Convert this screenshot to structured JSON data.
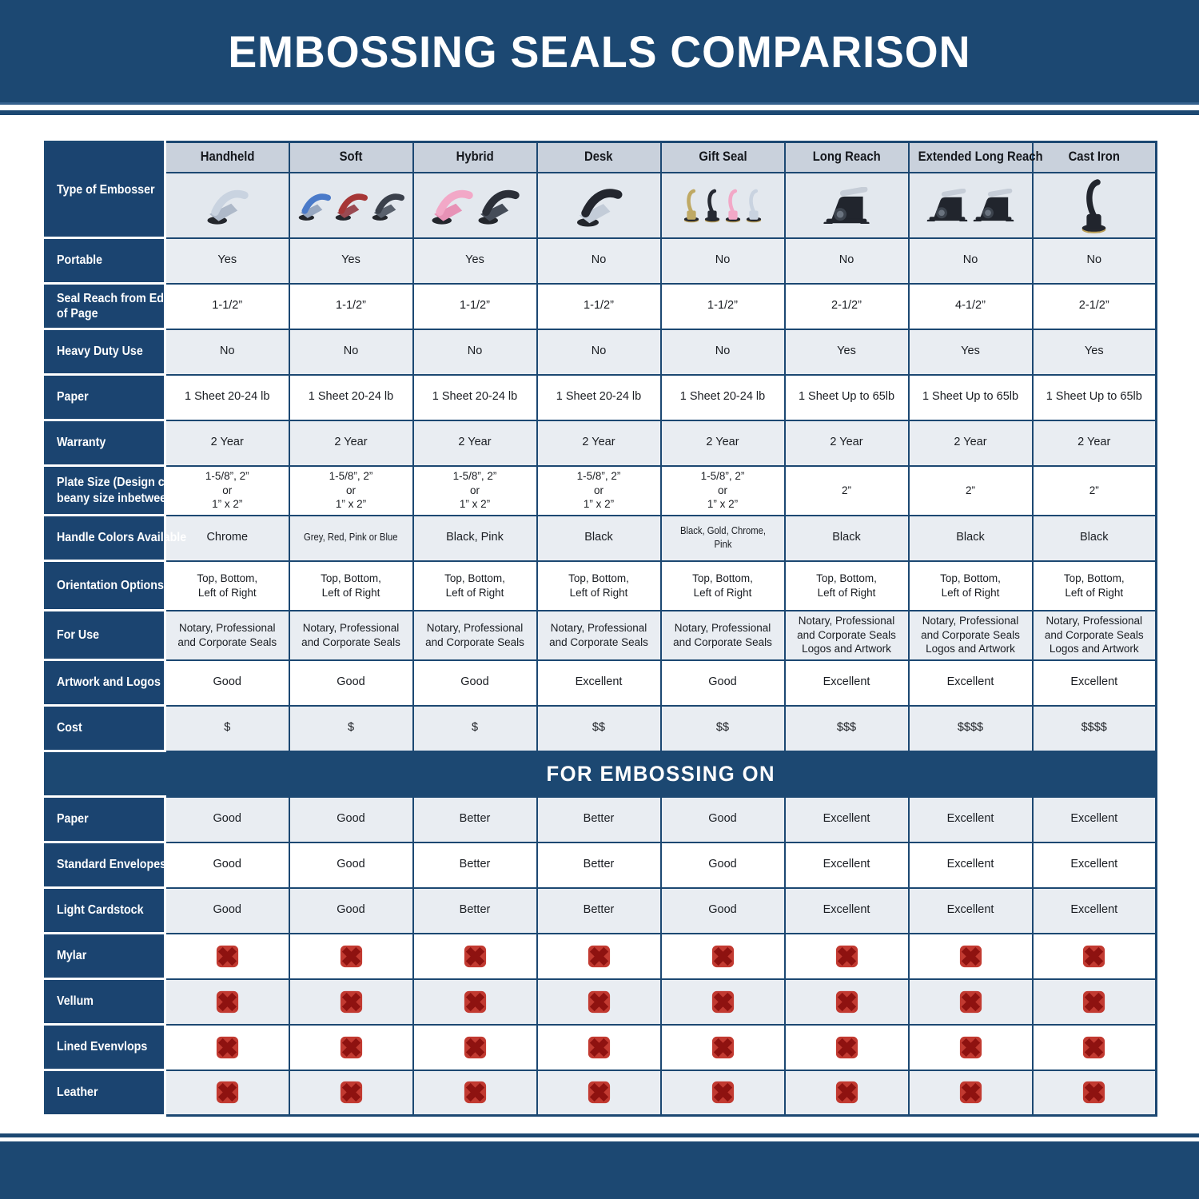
{
  "title": "EMBOSSING SEALS COMPARISON",
  "colors": {
    "navy": "#1c4872",
    "label_column": "#1b4470",
    "column_header_bg": "#c9d1dc",
    "row_gray": "#e9edf2",
    "image_row_bg": "#e3e8ee",
    "grid": "#1c4872",
    "x_mark_fill": "#c23a31",
    "x_mark_dark": "#8e1210",
    "cell_text": "#1a1d22"
  },
  "chart_data": {
    "type": "table",
    "title": "EMBOSSING SEALS COMPARISON",
    "corner_label": "Type of Embosser",
    "columns": [
      "Handheld",
      "Soft",
      "Hybrid",
      "Desk",
      "Gift Seal",
      "Long Reach",
      "Extended Long Reach",
      "Cast Iron"
    ],
    "embosser_images": [
      {
        "name": "handheld-embosser-image",
        "style": "hand",
        "units": [
          {
            "handle": "#c9d3e0",
            "jaw": "#aeb9c9"
          }
        ]
      },
      {
        "name": "soft-embosser-image",
        "style": "hand",
        "units": [
          {
            "handle": "#4a7ac9",
            "jaw": "#97a7c0"
          },
          {
            "handle": "#a63636",
            "jaw": "#9a4a52"
          },
          {
            "handle": "#3a404b",
            "jaw": "#59616d"
          }
        ]
      },
      {
        "name": "hybrid-embosser-image",
        "style": "hand",
        "scale": 1.12,
        "units": [
          {
            "handle": "#f2a8c7",
            "jaw": "#e792b6"
          },
          {
            "handle": "#2b2f38",
            "jaw": "#454c58"
          }
        ]
      },
      {
        "name": "desk-embosser-image",
        "style": "hand",
        "scale": 1.1,
        "units": [
          {
            "handle": "#23262e",
            "jaw": "#c3ccd8"
          }
        ]
      },
      {
        "name": "gift-seal-embosser-image",
        "style": "upright",
        "units": [
          {
            "body": "#bfa964"
          },
          {
            "body": "#262a33"
          },
          {
            "body": "#f2a8c7"
          },
          {
            "body": "#c9d3e0"
          }
        ]
      },
      {
        "name": "long-reach-embosser-image",
        "style": "desk",
        "units": [
          {
            "body": "#21252d"
          }
        ]
      },
      {
        "name": "extended-long-reach-embosser-image",
        "style": "desk",
        "units": [
          {
            "body": "#21252d"
          },
          {
            "body": "#21252d"
          }
        ]
      },
      {
        "name": "cast-iron-embosser-image",
        "style": "upright",
        "scale": 1.3,
        "units": [
          {
            "body": "#21252d"
          }
        ]
      }
    ],
    "spec_rows": [
      {
        "label": "Portable",
        "values": [
          "Yes",
          "Yes",
          "Yes",
          "No",
          "No",
          "No",
          "No",
          "No"
        ]
      },
      {
        "label": "Seal Reach from Edge\nof Page",
        "values": [
          "1-1/2”",
          "1-1/2”",
          "1-1/2”",
          "1-1/2”",
          "1-1/2”",
          "2-1/2”",
          "4-1/2”",
          "2-1/2”"
        ]
      },
      {
        "label": "Heavy Duty Use",
        "values": [
          "No",
          "No",
          "No",
          "No",
          "No",
          "Yes",
          "Yes",
          "Yes"
        ]
      },
      {
        "label": "Paper",
        "values": [
          "1 Sheet 20-24 lb",
          "1 Sheet 20-24 lb",
          "1 Sheet 20-24 lb",
          "1 Sheet 20-24 lb",
          "1 Sheet 20-24 lb",
          "1 Sheet Up to 65lb",
          "1 Sheet Up to 65lb",
          "1 Sheet Up to 65lb"
        ]
      },
      {
        "label": "Warranty",
        "values": [
          "2 Year",
          "2 Year",
          "2 Year",
          "2 Year",
          "2 Year",
          "2 Year",
          "2 Year",
          "2 Year"
        ]
      },
      {
        "label": "Plate Size (Design can\nbeany size inbetween)",
        "values": [
          "1-5/8”, 2”\nor\n1” x 2”",
          "1-5/8”, 2”\nor\n1” x 2”",
          "1-5/8”, 2”\nor\n1” x 2”",
          "1-5/8”, 2”\nor\n1” x 2”",
          "1-5/8”, 2”\nor\n1” x 2”",
          "2”",
          "2”",
          "2”"
        ]
      },
      {
        "label": "Handle Colors Available",
        "values": [
          "Chrome",
          "Grey, Red, Pink or Blue",
          "Black, Pink",
          "Black",
          "Black, Gold, Chrome, Pink",
          "Black",
          "Black",
          "Black"
        ]
      },
      {
        "label": "Orientation Options",
        "values": [
          "Top, Bottom,\nLeft of Right",
          "Top, Bottom,\nLeft of Right",
          "Top, Bottom,\nLeft of Right",
          "Top, Bottom,\nLeft of Right",
          "Top, Bottom,\nLeft of Right",
          "Top, Bottom,\nLeft of Right",
          "Top, Bottom,\nLeft of Right",
          "Top, Bottom,\nLeft of Right"
        ]
      },
      {
        "label": "For Use",
        "values": [
          "Notary, Professional\nand Corporate Seals",
          "Notary, Professional\nand Corporate Seals",
          "Notary, Professional\nand Corporate Seals",
          "Notary, Professional\nand Corporate Seals",
          "Notary, Professional\nand Corporate Seals",
          "Notary, Professional\nand Corporate Seals\nLogos and Artwork",
          "Notary, Professional\nand Corporate Seals\nLogos and Artwork",
          "Notary, Professional\nand Corporate Seals\nLogos and Artwork"
        ]
      },
      {
        "label": "Artwork and Logos",
        "values": [
          "Good",
          "Good",
          "Good",
          "Excellent",
          "Good",
          "Excellent",
          "Excellent",
          "Excellent"
        ]
      },
      {
        "label": "Cost",
        "values": [
          "$",
          "$",
          "$",
          "$$",
          "$$",
          "$$$",
          "$$$$",
          "$$$$"
        ]
      }
    ],
    "embossing_section_label": "FOR EMBOSSING ON",
    "embossing_rows": [
      {
        "label": "Paper",
        "values": [
          "Good",
          "Good",
          "Better",
          "Better",
          "Good",
          "Excellent",
          "Excellent",
          "Excellent"
        ]
      },
      {
        "label": "Standard Envelopes",
        "values": [
          "Good",
          "Good",
          "Better",
          "Better",
          "Good",
          "Excellent",
          "Excellent",
          "Excellent"
        ]
      },
      {
        "label": "Light Cardstock",
        "values": [
          "Good",
          "Good",
          "Better",
          "Better",
          "Good",
          "Excellent",
          "Excellent",
          "Excellent"
        ]
      },
      {
        "label": "Mylar",
        "values": [
          "✖",
          "✖",
          "✖",
          "✖",
          "✖",
          "✖",
          "✖",
          "✖"
        ]
      },
      {
        "label": "Vellum",
        "values": [
          "✖",
          "✖",
          "✖",
          "✖",
          "✖",
          "✖",
          "✖",
          "✖"
        ]
      },
      {
        "label": "Lined Evenvlops",
        "values": [
          "✖",
          "✖",
          "✖",
          "✖",
          "✖",
          "✖",
          "✖",
          "✖"
        ]
      },
      {
        "label": "Leather",
        "values": [
          "✖",
          "✖",
          "✖",
          "✖",
          "✖",
          "✖",
          "✖",
          "✖"
        ]
      }
    ]
  }
}
